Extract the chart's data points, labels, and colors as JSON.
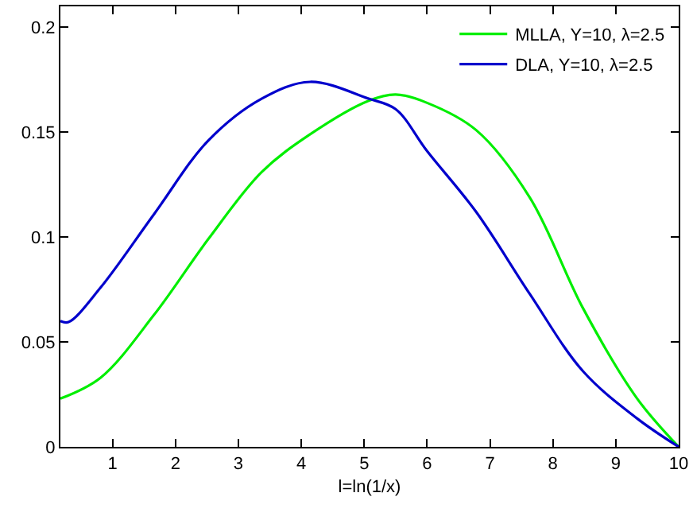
{
  "chart_data": {
    "type": "line",
    "xlabel": "l=ln(1/x)",
    "xlim": [
      0.17,
      10
    ],
    "ylim": [
      0,
      0.21
    ],
    "xticks": [
      1,
      2,
      3,
      4,
      5,
      6,
      7,
      8,
      9,
      10
    ],
    "yticks": [
      0,
      0.05,
      0.1,
      0.15,
      0.2
    ],
    "legend": "top right",
    "marker": "none",
    "line_style": "solid",
    "series": [
      {
        "name": "MLLA, Y=10, λ=2.5",
        "color": "#00ee00",
        "x": [
          0.17,
          0.81,
          1.66,
          2.52,
          3.37,
          4.14,
          5.07,
          5.5,
          6.0,
          6.78,
          7.63,
          8.48,
          9.34,
          10
        ],
        "values": [
          0.023,
          0.033,
          0.063,
          0.099,
          0.131,
          0.149,
          0.165,
          0.168,
          0.164,
          0.151,
          0.119,
          0.066,
          0.023,
          0
        ]
      },
      {
        "name": "DLA, Y=10, λ=2.5",
        "color": "#0000cc",
        "x": [
          0.17,
          0.3,
          0.81,
          1.66,
          2.52,
          3.37,
          4.14,
          5.07,
          5.5,
          6.0,
          6.78,
          7.63,
          8.48,
          9.34,
          10
        ],
        "values": [
          0.06,
          0.0595,
          0.076,
          0.111,
          0.146,
          0.166,
          0.174,
          0.166,
          0.161,
          0.141,
          0.112,
          0.073,
          0.036,
          0.0135,
          0
        ]
      }
    ]
  }
}
